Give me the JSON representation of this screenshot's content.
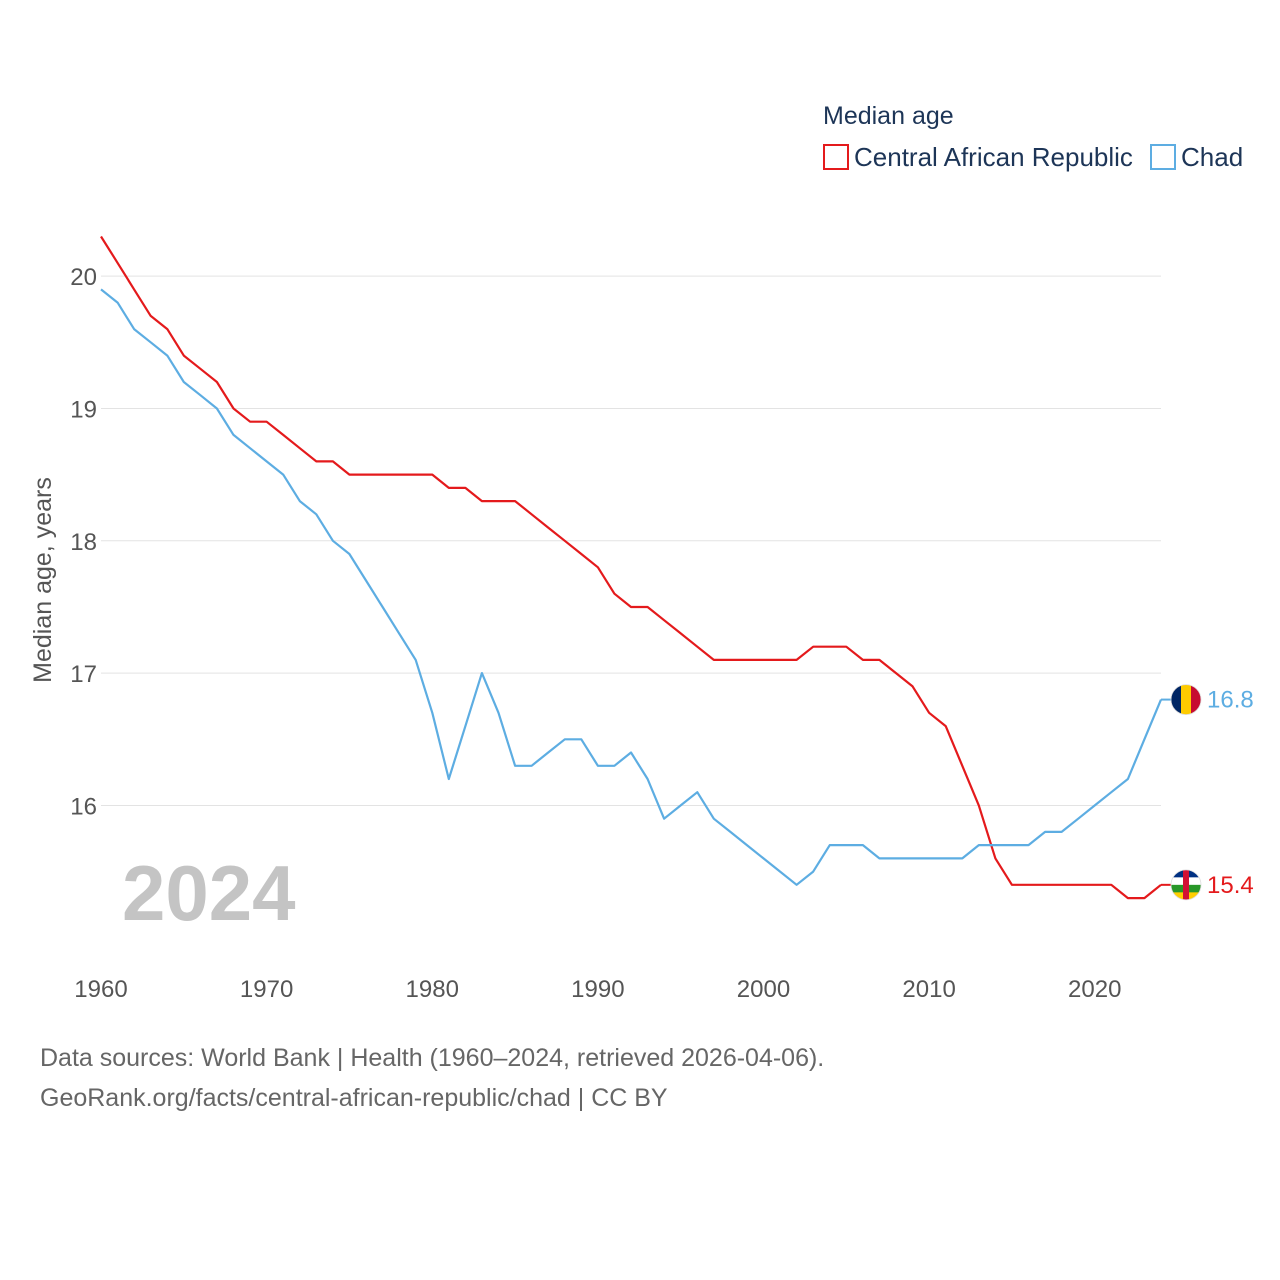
{
  "chart_data": {
    "type": "line",
    "legend_title": "Median age",
    "ylabel": "Median age, years",
    "year_label": "2024",
    "x": [
      1960,
      1961,
      1962,
      1963,
      1964,
      1965,
      1966,
      1967,
      1968,
      1969,
      1970,
      1971,
      1972,
      1973,
      1974,
      1975,
      1976,
      1977,
      1978,
      1979,
      1980,
      1981,
      1982,
      1983,
      1984,
      1985,
      1986,
      1987,
      1988,
      1989,
      1990,
      1991,
      1992,
      1993,
      1994,
      1995,
      1996,
      1997,
      1998,
      1999,
      2000,
      2001,
      2002,
      2003,
      2004,
      2005,
      2006,
      2007,
      2008,
      2009,
      2010,
      2011,
      2012,
      2013,
      2014,
      2015,
      2016,
      2017,
      2018,
      2019,
      2020,
      2021,
      2022,
      2023,
      2024
    ],
    "xlim": [
      1960,
      2024
    ],
    "ylim": [
      14.9,
      20.5
    ],
    "xticks": [
      1960,
      1970,
      1980,
      1990,
      2000,
      2010,
      2020
    ],
    "yticks": [
      16,
      17,
      18,
      19,
      20
    ],
    "series": [
      {
        "name": "Central African Republic",
        "color": "#e41a1c",
        "end_label": "15.4",
        "flag": [
          "#003082",
          "#ffffff",
          "#289728",
          "#ffce00",
          "#d21034"
        ],
        "values": [
          20.3,
          20.1,
          19.9,
          19.7,
          19.6,
          19.4,
          19.3,
          19.2,
          19.0,
          18.9,
          18.9,
          18.8,
          18.7,
          18.6,
          18.6,
          18.5,
          18.5,
          18.5,
          18.5,
          18.5,
          18.5,
          18.4,
          18.4,
          18.3,
          18.3,
          18.3,
          18.2,
          18.1,
          18.0,
          17.9,
          17.8,
          17.6,
          17.5,
          17.5,
          17.4,
          17.3,
          17.2,
          17.1,
          17.1,
          17.1,
          17.1,
          17.1,
          17.1,
          17.2,
          17.2,
          17.2,
          17.1,
          17.1,
          17.0,
          16.9,
          16.7,
          16.6,
          16.3,
          16.0,
          15.6,
          15.4,
          15.4,
          15.4,
          15.4,
          15.4,
          15.4,
          15.4,
          15.3,
          15.3,
          15.4
        ]
      },
      {
        "name": "Chad",
        "color": "#5dade2",
        "end_label": "16.8",
        "flag": [
          "#002664",
          "#fecb00",
          "#c60c30"
        ],
        "values": [
          19.9,
          19.8,
          19.6,
          19.5,
          19.4,
          19.2,
          19.1,
          19.0,
          18.8,
          18.7,
          18.6,
          18.5,
          18.3,
          18.2,
          18.0,
          17.9,
          17.7,
          17.5,
          17.3,
          17.1,
          16.7,
          16.2,
          16.6,
          17.0,
          16.7,
          16.3,
          16.3,
          16.4,
          16.5,
          16.5,
          16.3,
          16.3,
          16.4,
          16.2,
          15.9,
          16.0,
          16.1,
          15.9,
          15.8,
          15.7,
          15.6,
          15.5,
          15.4,
          15.5,
          15.7,
          15.7,
          15.7,
          15.6,
          15.6,
          15.6,
          15.6,
          15.6,
          15.6,
          15.7,
          15.7,
          15.7,
          15.7,
          15.8,
          15.8,
          15.9,
          16.0,
          16.1,
          16.2,
          16.5,
          16.8
        ]
      }
    ]
  },
  "footer": {
    "line1": "Data sources: World Bank | Health (1960–2024, retrieved 2026-04-06).",
    "line2": "GeoRank.org/facts/central-african-republic/chad | CC BY"
  }
}
